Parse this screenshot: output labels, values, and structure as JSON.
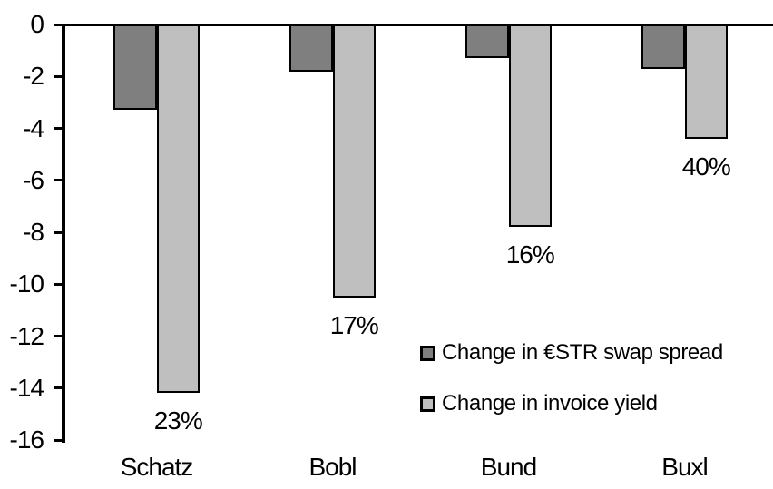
{
  "chart_data": {
    "type": "bar",
    "title": "",
    "xlabel": "",
    "ylabel": "",
    "categories": [
      "Schatz",
      "Bobl",
      "Bund",
      "Buxl"
    ],
    "series": [
      {
        "name": "Change in €STR swap spread",
        "color": "#7F7F7F",
        "values": [
          -3.3,
          -1.8,
          -1.3,
          -1.7
        ]
      },
      {
        "name": "Change in invoice yield",
        "color": "#BFBFBF",
        "values": [
          -14.2,
          -10.5,
          -7.8,
          -4.4
        ],
        "point_labels": [
          "23%",
          "17%",
          "16%",
          "40%"
        ]
      }
    ],
    "ylim": [
      -16,
      0
    ],
    "yticks": [
      "0",
      "-2",
      "-4",
      "-6",
      "-8",
      "-10",
      "-12",
      "-14",
      "-16"
    ],
    "grid": false,
    "legend_position": "inside-right",
    "axis_color": "#000000",
    "text_color": "#000000",
    "background": "#FFFFFF",
    "bar_border_color": "#000000"
  }
}
